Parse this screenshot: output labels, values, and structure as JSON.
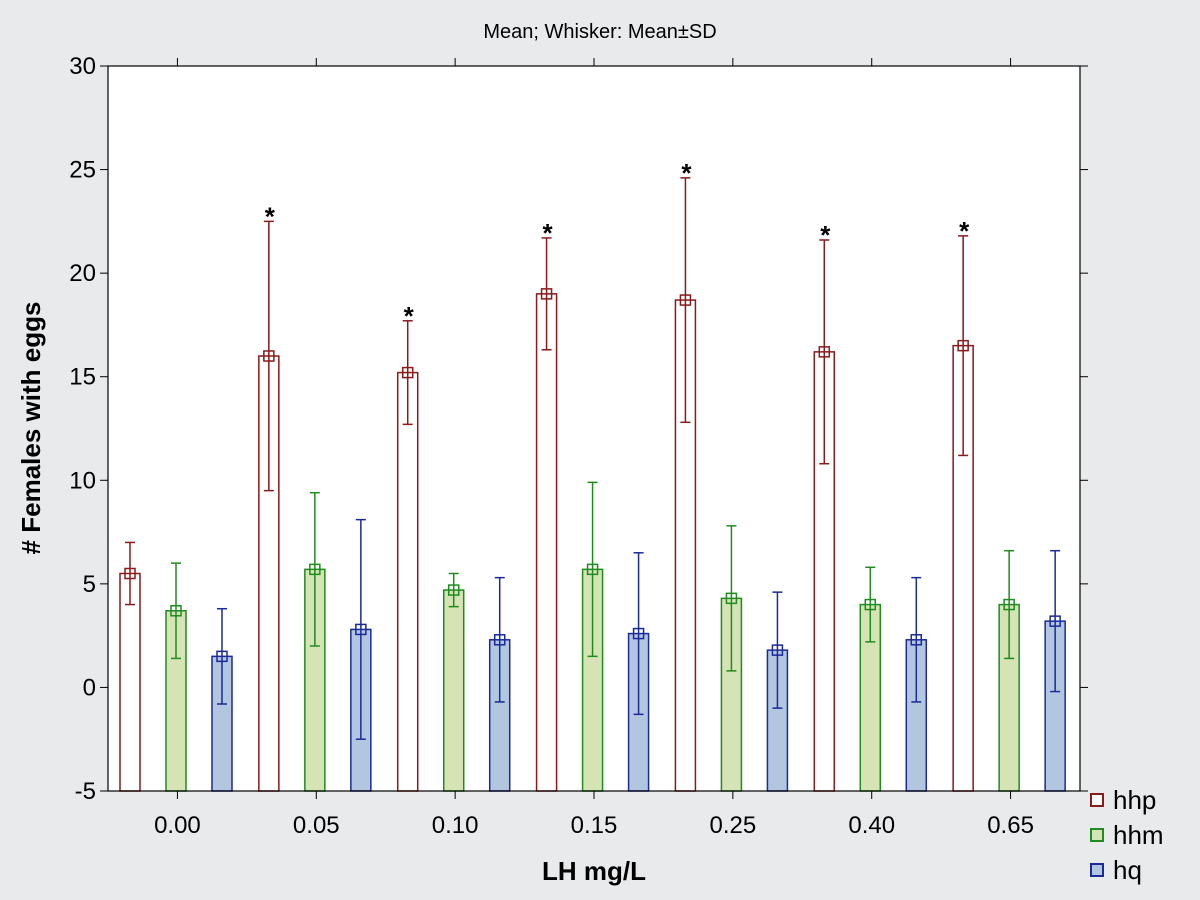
{
  "chart_data": {
    "type": "bar",
    "title": "Mean; Whisker: Mean±SD",
    "xlabel": "LH mg/L",
    "ylabel": "# Females with eggs",
    "categories": [
      "0.00",
      "0.05",
      "0.10",
      "0.15",
      "0.25",
      "0.40",
      "0.65"
    ],
    "ylim": [
      -5,
      30
    ],
    "yticks": [
      "-5",
      "0",
      "5",
      "10",
      "15",
      "20",
      "25",
      "30"
    ],
    "grid": false,
    "legend_position": "bottom-right",
    "series": [
      {
        "name": "hhp",
        "color": "#8b1a1a",
        "fill": "#ffffff",
        "mean": [
          5.5,
          16.0,
          15.2,
          19.0,
          18.7,
          16.2,
          16.5
        ],
        "sd": [
          1.5,
          6.5,
          2.5,
          2.7,
          5.9,
          5.4,
          5.3
        ]
      },
      {
        "name": "hhm",
        "color": "#1e8c1e",
        "fill": "#d6e3b4",
        "mean": [
          3.7,
          5.7,
          4.7,
          5.7,
          4.3,
          4.0,
          4.0
        ],
        "sd": [
          2.3,
          3.7,
          0.8,
          4.2,
          3.5,
          1.8,
          2.6
        ]
      },
      {
        "name": "hq",
        "color": "#1a2a9a",
        "fill": "#b3c6e0",
        "mean": [
          1.5,
          2.8,
          2.3,
          2.6,
          1.8,
          2.3,
          3.2
        ],
        "sd": [
          2.3,
          5.3,
          3.0,
          3.9,
          2.8,
          3.0,
          3.4
        ]
      }
    ],
    "annotations": [
      {
        "text": "*",
        "series": "hhp",
        "category": "0.05"
      },
      {
        "text": "*",
        "series": "hhp",
        "category": "0.10"
      },
      {
        "text": "*",
        "series": "hhp",
        "category": "0.15"
      },
      {
        "text": "*",
        "series": "hhp",
        "category": "0.25"
      },
      {
        "text": "*",
        "series": "hhp",
        "category": "0.40"
      },
      {
        "text": "*",
        "series": "hhp",
        "category": "0.65"
      }
    ]
  }
}
